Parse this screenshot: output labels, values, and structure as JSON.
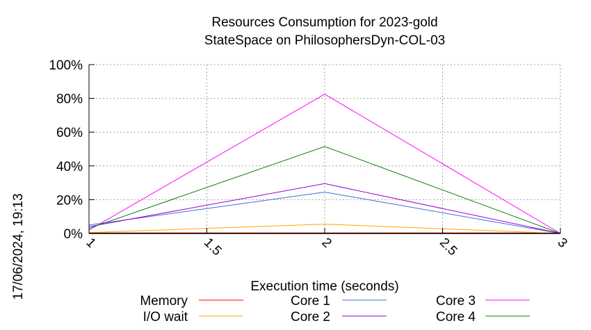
{
  "chart_data": {
    "type": "line",
    "title_line1": "Resources Consumption for 2023-gold",
    "title_line2": "StateSpace on PhilosophersDyn-COL-03",
    "xlabel": "Execution time (seconds)",
    "ylabel": "",
    "side_label": "17/06/2024, 19:13",
    "xlim": [
      1,
      3
    ],
    "ylim": [
      0,
      100
    ],
    "x_ticks": [
      {
        "value": 1,
        "label": "1"
      },
      {
        "value": 1.5,
        "label": "1.5"
      },
      {
        "value": 2,
        "label": "2"
      },
      {
        "value": 2.5,
        "label": "2.5"
      },
      {
        "value": 3,
        "label": "3"
      }
    ],
    "y_ticks": [
      {
        "value": 0,
        "label": "0%"
      },
      {
        "value": 20,
        "label": "20%"
      },
      {
        "value": 40,
        "label": "40%"
      },
      {
        "value": 60,
        "label": "60%"
      },
      {
        "value": 80,
        "label": "80%"
      },
      {
        "value": 100,
        "label": "100%"
      }
    ],
    "grid": true,
    "legend_position": "bottom",
    "x": [
      1,
      2,
      3
    ],
    "series": [
      {
        "name": "Memory",
        "color": "#ff0000",
        "values": [
          0.3,
          0.3,
          0.3
        ]
      },
      {
        "name": "I/O wait",
        "color": "#ffa500",
        "values": [
          0.5,
          5.5,
          0
        ]
      },
      {
        "name": "Core 1",
        "color": "#4169e1",
        "values": [
          5,
          24.5,
          0
        ]
      },
      {
        "name": "Core 2",
        "color": "#9400d3",
        "values": [
          4,
          29.5,
          0
        ]
      },
      {
        "name": "Core 3",
        "color": "#ff00ff",
        "values": [
          2,
          82.5,
          0
        ]
      },
      {
        "name": "Core 4",
        "color": "#008000",
        "values": [
          3,
          51.5,
          0
        ]
      }
    ]
  }
}
